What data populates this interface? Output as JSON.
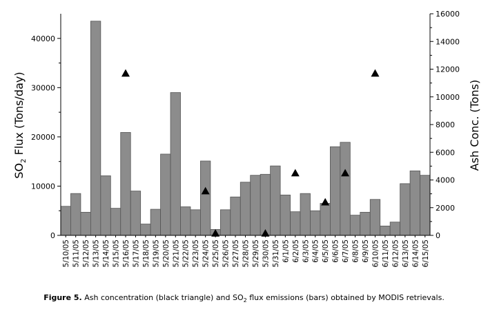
{
  "chart_data": {
    "type": "bar",
    "categories": [
      "5/10/05",
      "5/11/05",
      "5/12/05",
      "5/13/05",
      "5/14/05",
      "5/15/05",
      "5/16/05",
      "5/17/05",
      "5/18/05",
      "5/19/05",
      "5/20/05",
      "5/21/05",
      "5/22/05",
      "5/23/05",
      "5/24/05",
      "5/25/05",
      "5/26/05",
      "5/27/05",
      "5/28/05",
      "5/29/05",
      "5/30/05",
      "5/31/05",
      "6/1/05",
      "6/2/05",
      "6/3/05",
      "6/4/05",
      "6/5/05",
      "6/6/05",
      "6/7/05",
      "6/8/05",
      "6/9/05",
      "6/10/05",
      "6/11/05",
      "6/12/05",
      "6/13/05",
      "6/14/05",
      "6/15/05"
    ],
    "series": [
      {
        "name": "SO2 flux emissions (bars)",
        "type": "bar",
        "axis": "left",
        "color": "#8c8c8c",
        "values": [
          5900,
          8500,
          4700,
          43500,
          12100,
          5500,
          20900,
          9000,
          2300,
          5300,
          16500,
          29000,
          5800,
          5200,
          15100,
          1200,
          5200,
          7800,
          10800,
          12200,
          12400,
          14100,
          8200,
          4800,
          8500,
          5000,
          6500,
          18000,
          18900,
          4100,
          4700,
          7300,
          1900,
          2700,
          10500,
          13100,
          12200
        ]
      },
      {
        "name": "Ash concentration (black triangle)",
        "type": "scatter",
        "axis": "right",
        "marker": "triangle",
        "color": "#000000",
        "points": [
          {
            "x": "5/16/05",
            "y": 11700
          },
          {
            "x": "5/24/05",
            "y": 3200
          },
          {
            "x": "5/25/05",
            "y": 150
          },
          {
            "x": "5/30/05",
            "y": 150
          },
          {
            "x": "6/2/05",
            "y": 4500
          },
          {
            "x": "6/5/05",
            "y": 2400
          },
          {
            "x": "6/7/05",
            "y": 4500
          },
          {
            "x": "6/10/05",
            "y": 11700
          }
        ]
      }
    ],
    "ylabel_left_main": "SO",
    "ylabel_left_sub": "2",
    "ylabel_left_rest": " Flux (Tons/day)",
    "ylabel_right": "Ash Conc. (Tons)",
    "ylim_left": [
      0,
      45000
    ],
    "ylim_right": [
      0,
      16000
    ],
    "yticks_left": [
      "0",
      "10000",
      "20000",
      "30000",
      "40000"
    ],
    "yticks_right": [
      "0",
      "2000",
      "4000",
      "6000",
      "8000",
      "10000",
      "12000",
      "14000",
      "16000"
    ],
    "grid": false
  },
  "caption": {
    "label": "Figure 5.",
    "text_a": " Ash concentration (black triangle) and SO",
    "sub": "2",
    "text_b": " flux emissions (bars) obtained by MODIS retrievals."
  }
}
